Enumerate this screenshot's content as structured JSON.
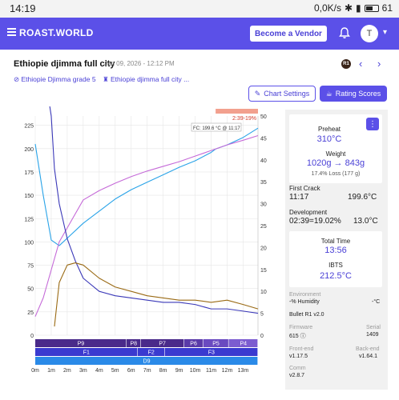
{
  "status_bar": {
    "time": "14:19",
    "net": "0,0K/s",
    "battery": "61"
  },
  "topbar": {
    "brand": "ROAST.WORLD",
    "vendor_button": "Become a Vendor",
    "avatar": "T"
  },
  "header": {
    "title": "Ethiopie djimma full city",
    "datetime": "Jan 09, 2026 - 12:12 PM",
    "roaster_badge": "R1",
    "bean_link": "Ethiopie Djimma grade 5",
    "profile_link": "Ethiopie djimma full city ...",
    "chart_settings": "Chart Settings",
    "rating_scores": "Rating Scores"
  },
  "chart_data": {
    "type": "line",
    "xlabel": "",
    "ylabel": "",
    "x_ticks": [
      "0m",
      "1m",
      "2m",
      "3m",
      "4m",
      "5m",
      "6m",
      "7m",
      "8m",
      "9m",
      "10m",
      "11m",
      "12m",
      "13m"
    ],
    "y_left_ticks": [
      225,
      200,
      175,
      150,
      125,
      100,
      75,
      50,
      25,
      0
    ],
    "y_right_ticks": [
      50,
      45,
      40,
      35,
      30,
      25,
      20,
      15,
      10,
      5,
      0
    ],
    "ylim_left": [
      0,
      235
    ],
    "ylim_right": [
      0,
      50
    ],
    "xlim_minutes": [
      0,
      13.93
    ],
    "first_crack_annotation": "FC: 199.6 °C @ 11:17",
    "development_annotation": "2:39-19%",
    "series": [
      {
        "color": "#29a3e8",
        "x": [
          0,
          0.5,
          1,
          1.5,
          2,
          3,
          4,
          5,
          6,
          7,
          8,
          9,
          10,
          11,
          11.28,
          12,
          13,
          13.93
        ],
        "values": [
          205,
          150,
          102,
          96,
          104,
          120,
          133,
          146,
          156,
          164,
          172,
          180,
          187,
          196,
          199.6,
          204,
          212,
          222
        ]
      },
      {
        "color": "#c56ad8",
        "x": [
          0,
          0.5,
          1,
          1.5,
          2,
          3,
          4,
          5,
          6,
          7,
          8,
          9,
          10,
          11,
          12,
          13,
          13.93
        ],
        "values": [
          20,
          40,
          70,
          100,
          115,
          145,
          155,
          163,
          170,
          176,
          181,
          186,
          192,
          198,
          204,
          209,
          214
        ]
      },
      {
        "color": "#3a38b8",
        "axis": "right",
        "x": [
          0.5,
          1,
          1.2,
          1.5,
          2,
          2.5,
          3,
          4,
          5,
          6,
          7,
          8,
          9,
          10,
          11,
          12,
          13,
          13.93
        ],
        "values": [
          62,
          50,
          38,
          30,
          22,
          17,
          13,
          10,
          9,
          8.5,
          8,
          7.5,
          7.5,
          7,
          6,
          6,
          5.5,
          5
        ]
      },
      {
        "color": "#9a6a14",
        "axis": "right",
        "x": [
          1.2,
          1.5,
          2,
          2.5,
          3,
          4,
          5,
          6,
          7,
          8,
          9,
          10,
          11,
          12,
          13,
          13.93
        ],
        "values": [
          2,
          12,
          16,
          16.5,
          16,
          13,
          11,
          10,
          9,
          8.5,
          8,
          8,
          7.5,
          8,
          7,
          6
        ]
      }
    ],
    "phase_bars": {
      "profile": [
        {
          "label": "P9",
          "from": 0,
          "to": 5.7,
          "color": "#4a2a8a"
        },
        {
          "label": "P8",
          "from": 5.7,
          "to": 6.6,
          "color": "#4a2a8a"
        },
        {
          "label": "P7",
          "from": 6.6,
          "to": 9.3,
          "color": "#4a2a8a"
        },
        {
          "label": "P6",
          "from": 9.3,
          "to": 10.5,
          "color": "#5a3aa8"
        },
        {
          "label": "P5",
          "from": 10.5,
          "to": 12.1,
          "color": "#6a4ac0"
        },
        {
          "label": "P4",
          "from": 12.1,
          "to": 13.93,
          "color": "#7c5cd0"
        }
      ],
      "fan": [
        {
          "label": "F1",
          "from": 0,
          "to": 6.4,
          "color": "#3a3ad0"
        },
        {
          "label": "F2",
          "from": 6.4,
          "to": 8.1,
          "color": "#3a3ad0"
        },
        {
          "label": "F3",
          "from": 8.1,
          "to": 13.93,
          "color": "#3a3ad0"
        }
      ],
      "drum": [
        {
          "label": "D9",
          "from": 0,
          "to": 13.93,
          "color": "#2a8ae8"
        }
      ]
    }
  },
  "panel": {
    "preheat_label": "Preheat",
    "preheat_value": "310°C",
    "weight_label": "Weight",
    "weight_in": "1020g",
    "weight_arrow": "→",
    "weight_out": "843g",
    "loss": "17.4% Loss (177 g)",
    "first_crack_label": "First Crack",
    "first_crack_time": "11:17",
    "first_crack_temp": "199.6°C",
    "development_label": "Development",
    "development_value": "02:39=19.02%",
    "development_rise": "13.0°C",
    "total_time_label": "Total Time",
    "total_time": "13:56",
    "ibts_label": "IBTS",
    "ibts_value": "212.5°C",
    "environment_label": "Environment",
    "humidity": "-% Humidity",
    "env_temp": "-°C",
    "device": "Bullet R1 v2.0",
    "firmware_label": "Firmware",
    "firmware_value": "615",
    "serial_label": "Serial",
    "serial_value": "1409",
    "frontend_label": "Front-end",
    "frontend_value": "v1.17.5",
    "backend_label": "Back-end",
    "backend_value": "v1.64.1",
    "comm_label": "Comm",
    "comm_value": "v2.8.7"
  }
}
